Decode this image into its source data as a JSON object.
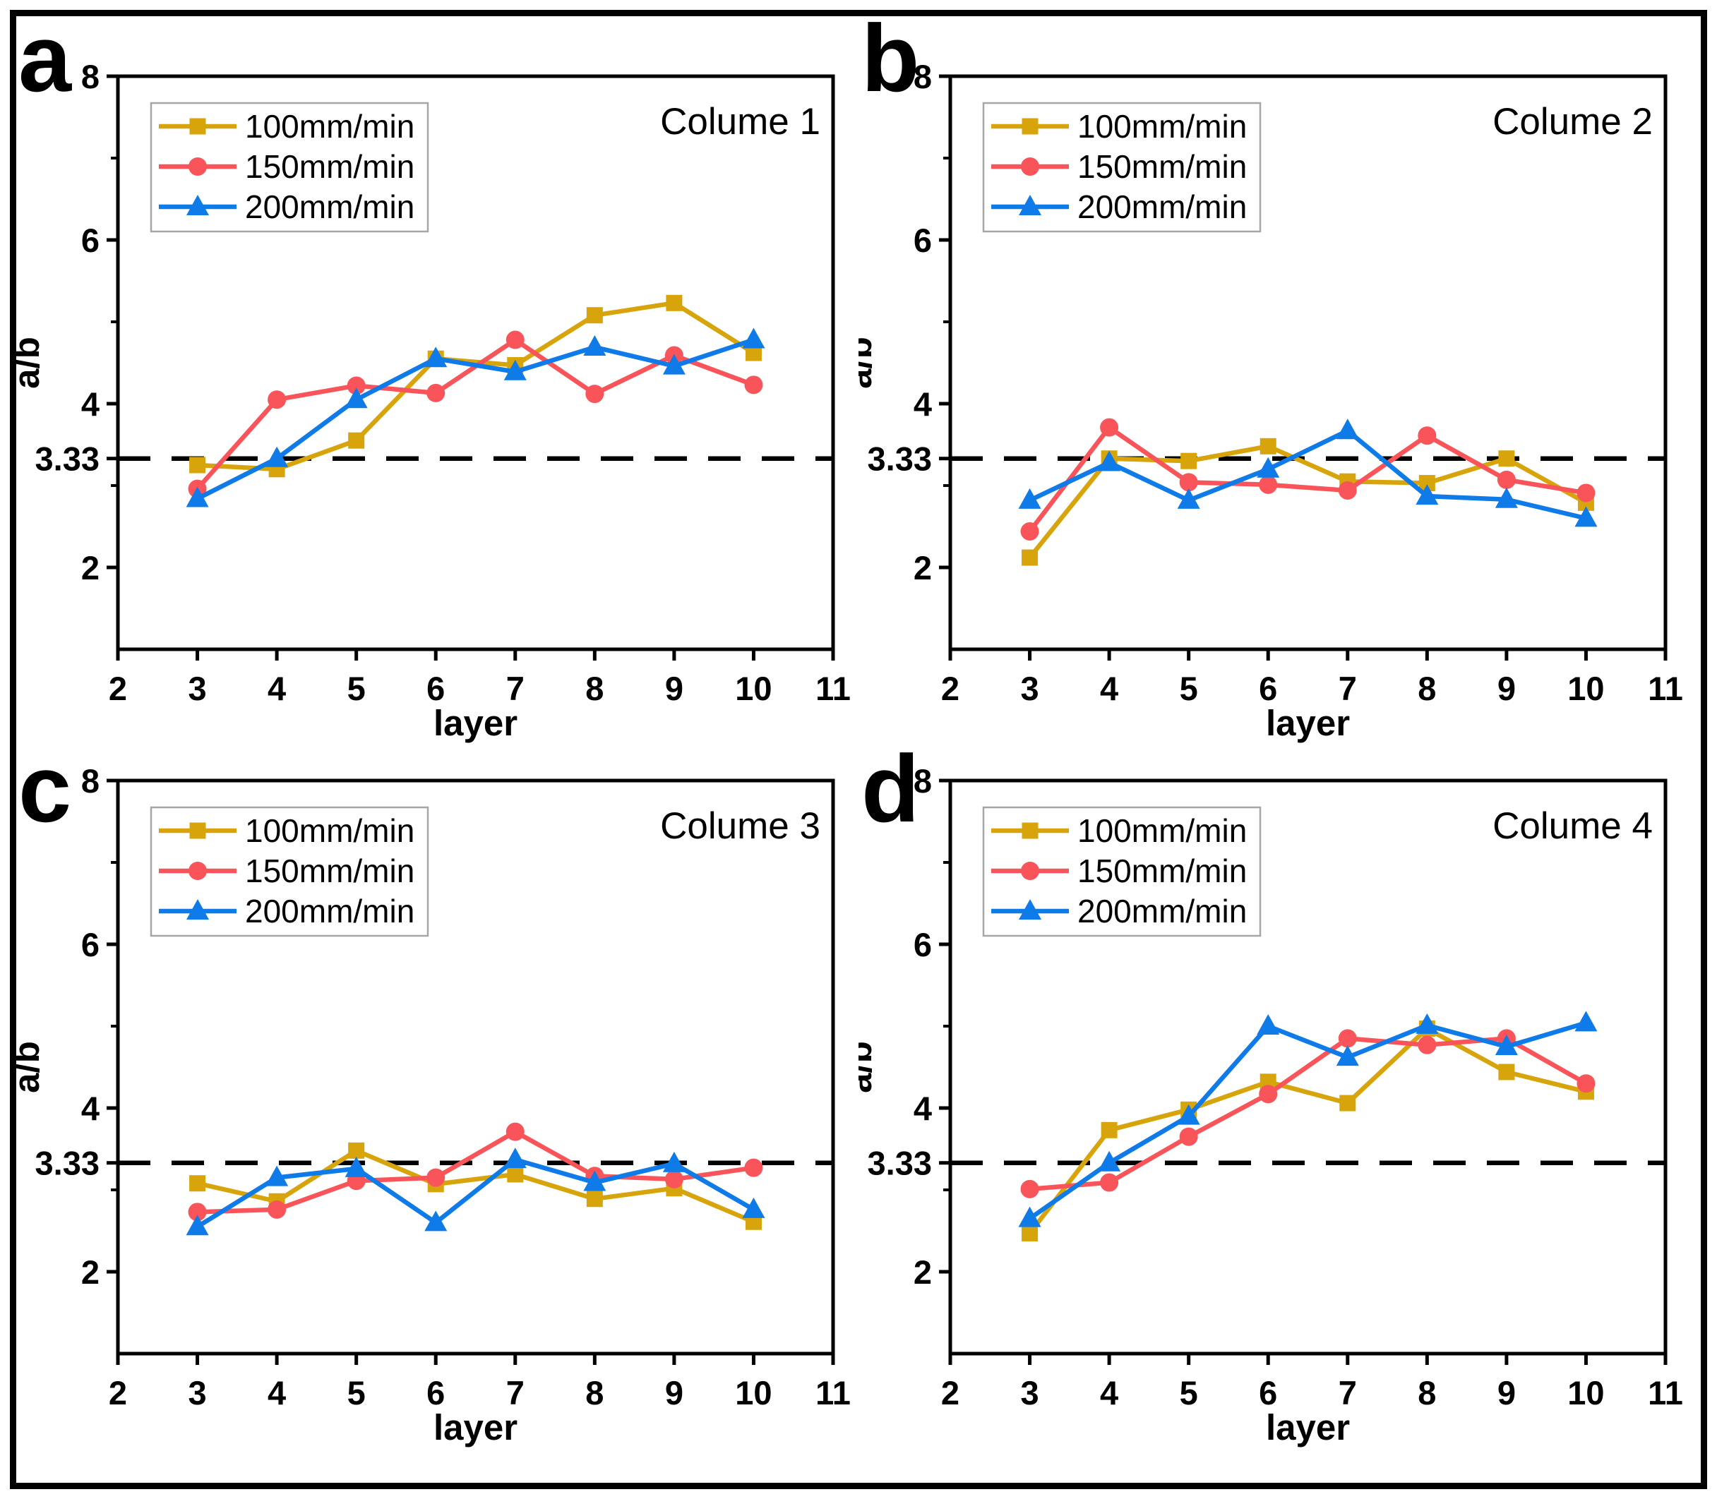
{
  "axes": {
    "xlabel": "layer",
    "ylabel": "a/b",
    "xlim": [
      2,
      11
    ],
    "ylim": [
      1,
      8
    ],
    "xticks": [
      2,
      3,
      4,
      5,
      6,
      7,
      8,
      9,
      10,
      11
    ],
    "yticks_major": [
      2,
      4,
      6,
      8
    ],
    "yticks_minor": [
      3,
      5,
      7
    ],
    "reference_line": 3.33,
    "reference_label": "3.33",
    "grid": false
  },
  "legend": {
    "position": "upper-left",
    "items": [
      {
        "label": "100mm/min",
        "color": "#D7A50B",
        "marker": "square"
      },
      {
        "label": "150mm/min",
        "color": "#F85459",
        "marker": "circle"
      },
      {
        "label": "200mm/min",
        "color": "#0F7BE8",
        "marker": "triangle"
      }
    ]
  },
  "colors": {
    "series_100": "#D7A50B",
    "series_150": "#F85459",
    "series_200": "#0F7BE8",
    "reference_dashed": "#000000",
    "frame": "#000000",
    "legend_border": "#A6A6A6"
  },
  "chart_data": [
    {
      "type": "line",
      "panel_letter": "a",
      "title": "Colume 1",
      "xlabel": "layer",
      "ylabel": "a/b",
      "x": [
        3,
        4,
        5,
        6,
        7,
        8,
        9,
        10
      ],
      "xlim": [
        2,
        11
      ],
      "ylim": [
        1,
        8
      ],
      "dashed_reference_y": 3.33,
      "series": [
        {
          "name": "100mm/min",
          "color": "#D7A50B",
          "marker": "square",
          "values": [
            3.25,
            3.2,
            3.55,
            4.55,
            4.47,
            5.08,
            5.23,
            4.62
          ]
        },
        {
          "name": "150mm/min",
          "color": "#F85459",
          "marker": "circle",
          "values": [
            2.96,
            4.05,
            4.22,
            4.13,
            4.78,
            4.12,
            4.59,
            4.23
          ]
        },
        {
          "name": "200mm/min",
          "color": "#0F7BE8",
          "marker": "triangle",
          "values": [
            2.84,
            3.33,
            4.05,
            4.55,
            4.39,
            4.69,
            4.46,
            4.78
          ]
        }
      ]
    },
    {
      "type": "line",
      "panel_letter": "b",
      "title": "Colume 2",
      "xlabel": "layer",
      "ylabel": "a/b",
      "x": [
        3,
        4,
        5,
        6,
        7,
        8,
        9,
        10
      ],
      "xlim": [
        2,
        11
      ],
      "ylim": [
        1,
        8
      ],
      "dashed_reference_y": 3.33,
      "series": [
        {
          "name": "100mm/min",
          "color": "#D7A50B",
          "marker": "square",
          "values": [
            2.12,
            3.33,
            3.3,
            3.48,
            3.05,
            3.03,
            3.33,
            2.79
          ]
        },
        {
          "name": "150mm/min",
          "color": "#F85459",
          "marker": "circle",
          "values": [
            2.44,
            3.71,
            3.04,
            3.01,
            2.94,
            3.61,
            3.07,
            2.91
          ]
        },
        {
          "name": "200mm/min",
          "color": "#0F7BE8",
          "marker": "triangle",
          "values": [
            2.82,
            3.28,
            2.82,
            3.2,
            3.67,
            2.87,
            2.83,
            2.6
          ]
        }
      ]
    },
    {
      "type": "line",
      "panel_letter": "c",
      "title": "Colume 3",
      "xlabel": "layer",
      "ylabel": "a/b",
      "x": [
        3,
        4,
        5,
        6,
        7,
        8,
        9,
        10
      ],
      "xlim": [
        2,
        11
      ],
      "ylim": [
        1,
        8
      ],
      "dashed_reference_y": 3.33,
      "series": [
        {
          "name": "100mm/min",
          "color": "#D7A50B",
          "marker": "square",
          "values": [
            3.08,
            2.86,
            3.48,
            3.07,
            3.19,
            2.89,
            3.02,
            2.61
          ]
        },
        {
          "name": "150mm/min",
          "color": "#F85459",
          "marker": "circle",
          "values": [
            2.73,
            2.76,
            3.11,
            3.15,
            3.71,
            3.17,
            3.13,
            3.27
          ]
        },
        {
          "name": "200mm/min",
          "color": "#0F7BE8",
          "marker": "triangle",
          "values": [
            2.55,
            3.15,
            3.26,
            2.6,
            3.37,
            3.09,
            3.32,
            2.76
          ]
        }
      ]
    },
    {
      "type": "line",
      "panel_letter": "d",
      "title": "Colume 4",
      "xlabel": "layer",
      "ylabel": "a/b",
      "x": [
        3,
        4,
        5,
        6,
        7,
        8,
        9,
        10
      ],
      "xlim": [
        2,
        11
      ],
      "ylim": [
        1,
        8
      ],
      "dashed_reference_y": 3.33,
      "series": [
        {
          "name": "100mm/min",
          "color": "#D7A50B",
          "marker": "square",
          "values": [
            2.47,
            3.73,
            3.98,
            4.32,
            4.06,
            4.97,
            4.44,
            4.2
          ]
        },
        {
          "name": "150mm/min",
          "color": "#F85459",
          "marker": "circle",
          "values": [
            3.01,
            3.09,
            3.65,
            4.17,
            4.85,
            4.77,
            4.85,
            4.3
          ]
        },
        {
          "name": "200mm/min",
          "color": "#0F7BE8",
          "marker": "triangle",
          "values": [
            2.65,
            3.33,
            3.9,
            5.0,
            4.62,
            5.01,
            4.75,
            5.04
          ]
        }
      ]
    }
  ]
}
